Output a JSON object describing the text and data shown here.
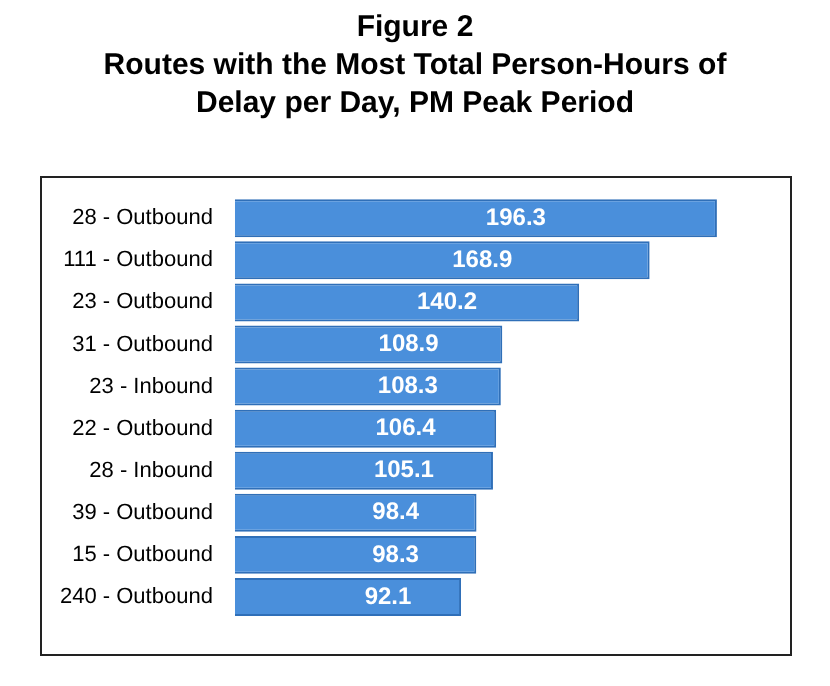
{
  "chart_data": {
    "type": "bar",
    "orientation": "horizontal",
    "title": "Figure 2\nRoutes with the Most Total Person-Hours of\nDelay per Day, PM Peak Period",
    "categories": [
      "28 - Outbound",
      "111 - Outbound",
      "23 - Outbound",
      "31 - Outbound",
      "23 - Inbound",
      "22 - Outbound",
      "28 - Inbound",
      "39 - Outbound",
      "15 - Outbound",
      "240 - Outbound"
    ],
    "values": [
      196.3,
      168.9,
      140.2,
      108.9,
      108.3,
      106.4,
      105.1,
      98.4,
      98.3,
      92.1
    ],
    "color": "#4a8fdb",
    "data_labels": true,
    "tick_labels": "y",
    "legend": false
  }
}
